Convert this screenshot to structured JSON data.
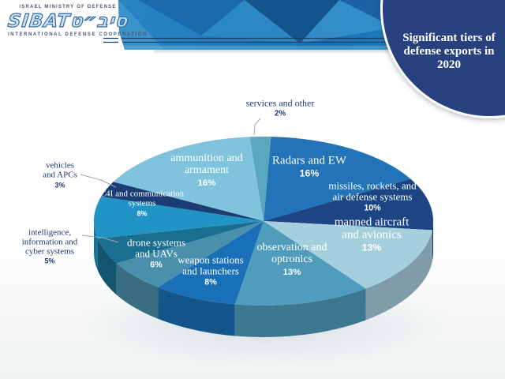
{
  "header": {
    "logo": {
      "top_line": "ISRAEL MINISTRY OF DEFENSE",
      "script_latin": "SIBAT",
      "script_hebrew": "סיב״ט",
      "bottom_line": "INTERNATIONAL DEFENSE COOPERATION",
      "brand_color": "#2b6ba8"
    },
    "banner": {
      "base_color": "#1b72b6",
      "dark_accent": "#11497f",
      "light_accent": "#3f97cc",
      "teal_accent": "#7ecbc3",
      "line_color": "#1b3e66"
    },
    "title_badge": {
      "line1": "Significant tiers of",
      "line2": "defense exports in 2020",
      "bg_color": "#27417e",
      "text_color": "#ffffff"
    }
  },
  "chart_data": {
    "type": "pie",
    "style": "3d",
    "title": "Significant tiers of defense exports in 2020",
    "unit": "%",
    "start_offset_deg": 2.5,
    "clockwise_from_top": true,
    "slices": [
      {
        "id": "radars-and-ew",
        "label_lines": [
          "Radars and EW"
        ],
        "value": 16,
        "color": "#2273b8",
        "text_color": "#ffffff"
      },
      {
        "id": "missiles-rockets",
        "label_lines": [
          "missiles, rockets, and",
          "air defense systems"
        ],
        "value": 10,
        "color": "#1d4584",
        "text_color": "#ffffff"
      },
      {
        "id": "manned-aircraft",
        "label_lines": [
          "manned aircraft",
          "and avionics"
        ],
        "value": 13,
        "color": "#a6cfdd",
        "text_color": "#ffffff"
      },
      {
        "id": "observation-optronics",
        "label_lines": [
          "observation and",
          "optronics"
        ],
        "value": 13,
        "color": "#4f9cbd",
        "text_color": "#ffffff"
      },
      {
        "id": "weapon-stations",
        "label_lines": [
          "weapon stations",
          "and launchers"
        ],
        "value": 8,
        "color": "#1a70b8",
        "text_color": "#ffffff"
      },
      {
        "id": "drone-systems",
        "label_lines": [
          "drone systems",
          "and UAVs"
        ],
        "value": 6,
        "color": "#4a90ad",
        "text_color": "#ffffff"
      },
      {
        "id": "intelligence-cyber",
        "label_lines": [
          "intelligence,",
          "information and",
          "cyber systems"
        ],
        "value": 5,
        "color": "#1a6f91",
        "text_color": "#1e3a6e",
        "outside": true
      },
      {
        "id": "c4i-communication",
        "label_lines": [
          "C4I and communication",
          "systems"
        ],
        "value": 8,
        "color": "#2095c5",
        "text_color": "#ffffff"
      },
      {
        "id": "vehicles-apcs",
        "label_lines": [
          "vehicles",
          "and APCs"
        ],
        "value": 3,
        "color": "#1c3c74",
        "text_color": "#1e3a6e",
        "outside": true
      },
      {
        "id": "ammunition-armament",
        "label_lines": [
          "ammunition and",
          "armament"
        ],
        "value": 16,
        "color": "#80c3dc",
        "text_color": "#ffffff"
      },
      {
        "id": "services-other",
        "label_lines": [
          "services and other"
        ],
        "value": 2,
        "color": "#5aa7bd",
        "text_color": "#1e3a6e",
        "outside": true
      }
    ]
  }
}
